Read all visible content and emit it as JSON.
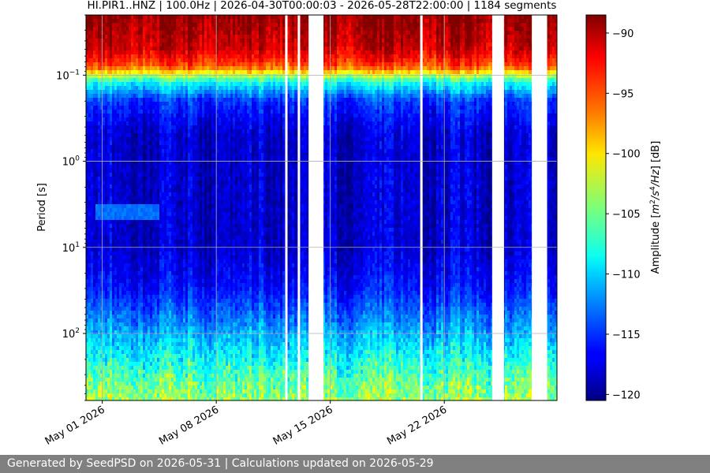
{
  "footer": {
    "text": "Generated by SeedPSD on 2026-05-31 | Calculations updated on 2026-05-29"
  },
  "chart_data": {
    "type": "heatmap",
    "title": "HI.PIR1..HNZ | 100.0Hz | 2026-04-30T00:00:03 - 2026-05-28T22:00:00 | 1184 segments",
    "ylabel": "Period [s]",
    "xlabel": "",
    "x_range": [
      "2026-04-30T00:00:03",
      "2026-05-28T22:00:00"
    ],
    "x_ticks": [
      {
        "date": "2026-05-01",
        "label": "May 01 2026"
      },
      {
        "date": "2026-05-08",
        "label": "May 08 2026"
      },
      {
        "date": "2026-05-15",
        "label": "May 15 2026"
      },
      {
        "date": "2026-05-22",
        "label": "May 22 2026"
      }
    ],
    "y_scale": "log",
    "y_inverted": true,
    "y_range": [
      0.02,
      600
    ],
    "y_ticks": [
      {
        "value": 0.1,
        "base": "10",
        "exp": "−1"
      },
      {
        "value": 1,
        "base": "10",
        "exp": "0"
      },
      {
        "value": 10,
        "base": "10",
        "exp": "1"
      },
      {
        "value": 100,
        "base": "10",
        "exp": "2"
      }
    ],
    "grid": true,
    "data_gaps": [
      [
        "2026-05-12T05:30:00",
        "2026-05-12T09:00:00"
      ],
      [
        "2026-05-13T00:00:00",
        "2026-05-13T03:30:00"
      ],
      [
        "2026-05-13T16:00:00",
        "2026-05-14T14:00:00"
      ],
      [
        "2026-05-20T12:30:00",
        "2026-05-20T16:00:00"
      ],
      [
        "2026-05-24T22:30:00",
        "2026-05-25T16:00:00"
      ],
      [
        "2026-05-27T09:00:00",
        "2026-05-28T07:30:00"
      ]
    ],
    "amplitude_profile": [
      {
        "period": 0.02,
        "db": -89
      },
      {
        "period": 0.05,
        "db": -91
      },
      {
        "period": 0.08,
        "db": -95
      },
      {
        "period": 0.12,
        "db": -108
      },
      {
        "period": 0.2,
        "db": -115
      },
      {
        "period": 0.5,
        "db": -118
      },
      {
        "period": 2,
        "db": -118
      },
      {
        "period": 10,
        "db": -118
      },
      {
        "period": 30,
        "db": -116
      },
      {
        "period": 80,
        "db": -113
      },
      {
        "period": 200,
        "db": -110
      },
      {
        "period": 600,
        "db": -106
      }
    ],
    "microseism_feature": {
      "date_start": "2026-04-30T12:00:00",
      "date_end": "2026-05-04T12:00:00",
      "period_range": [
        3,
        5
      ],
      "db": -113
    },
    "colorbar": {
      "label_text": "Amplitude [",
      "label_unit_parts": [
        "m",
        "2",
        "/s",
        "4",
        "/Hz",
        "] [dB]"
      ],
      "min": -120.5,
      "max": -88.5,
      "colormap": "jet",
      "ticks": [
        {
          "value": -90,
          "label": "−90"
        },
        {
          "value": -95,
          "label": "−95"
        },
        {
          "value": -100,
          "label": "−100"
        },
        {
          "value": -105,
          "label": "−105"
        },
        {
          "value": -110,
          "label": "−110"
        },
        {
          "value": -115,
          "label": "−115"
        },
        {
          "value": -120,
          "label": "−120"
        }
      ]
    }
  }
}
